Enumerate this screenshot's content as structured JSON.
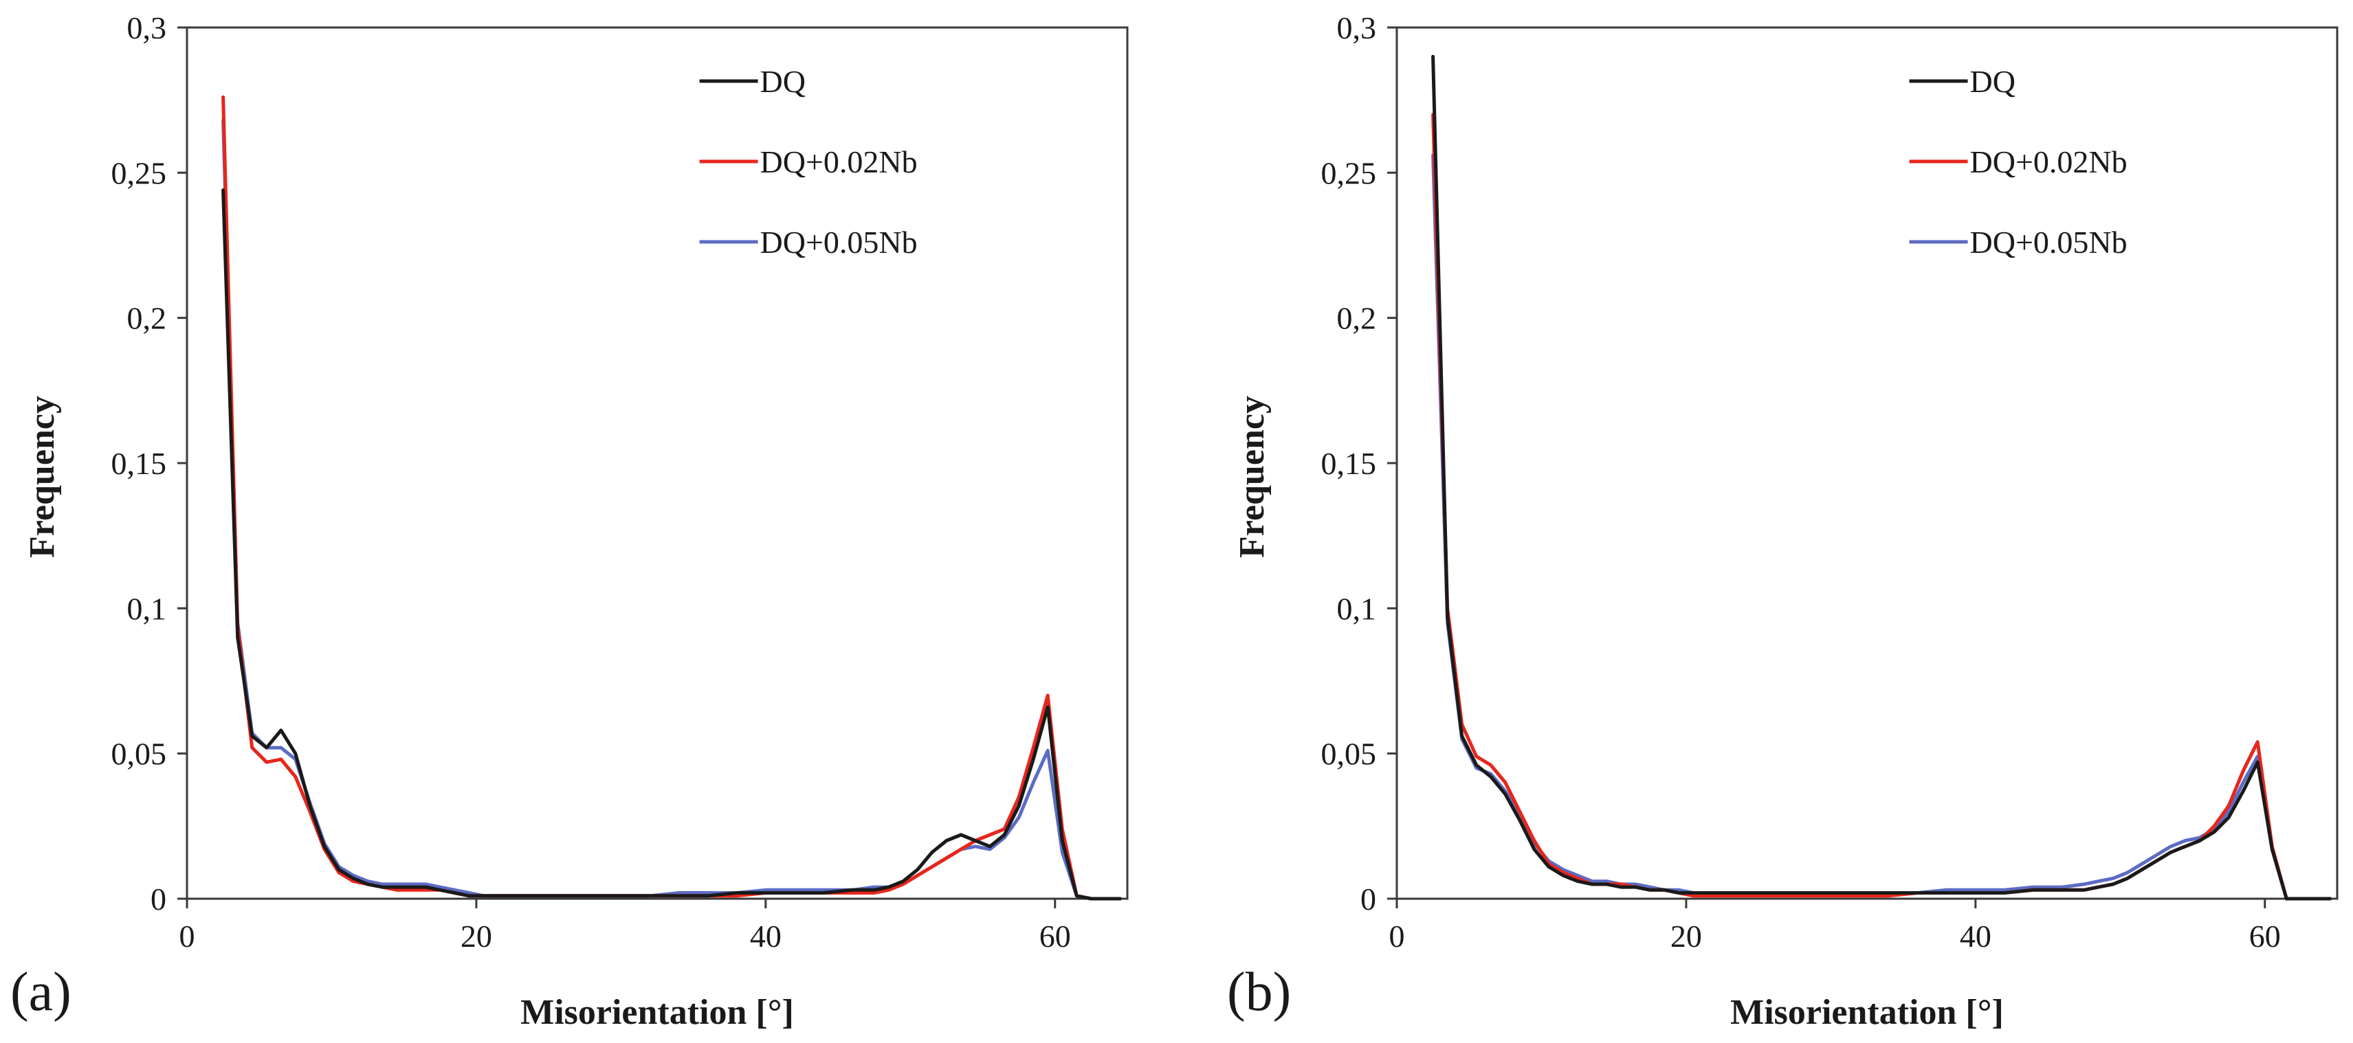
{
  "chart_data": [
    {
      "type": "line",
      "panel_label": "(a)",
      "title": "",
      "xlabel": "Misorientation [°]",
      "ylabel": "Frequency",
      "xlim": [
        0,
        65
      ],
      "ylim": [
        0,
        0.3
      ],
      "xticks": [
        0,
        20,
        40,
        60
      ],
      "xtick_labels": [
        "0",
        "20",
        "40",
        "60"
      ],
      "yticks": [
        0,
        0.05,
        0.1,
        0.15,
        0.2,
        0.25,
        0.3
      ],
      "ytick_labels": [
        "0",
        "0,05",
        "0,1",
        "0,15",
        "0,2",
        "0,25",
        "0,3"
      ],
      "grid": false,
      "legend_position": "top-right",
      "x": [
        2.5,
        3.5,
        4.5,
        5.5,
        6.5,
        7.5,
        8.5,
        9.5,
        10.5,
        11.5,
        12.5,
        13.5,
        14.5,
        15.5,
        16.5,
        17.5,
        18.5,
        19.5,
        20.5,
        22,
        24,
        26,
        28,
        30,
        32,
        34,
        36,
        38,
        40,
        42,
        44,
        46,
        47.5,
        48.5,
        49.5,
        50.5,
        51.5,
        52.5,
        53.5,
        54.5,
        55.5,
        56.5,
        57.5,
        58.5,
        59.5,
        60.5,
        61.5,
        62.5,
        63.5,
        64.5
      ],
      "series": [
        {
          "name": "DQ",
          "color": "#1a1a1a",
          "values": [
            0.244,
            0.09,
            0.056,
            0.052,
            0.058,
            0.05,
            0.032,
            0.018,
            0.01,
            0.007,
            0.005,
            0.004,
            0.004,
            0.004,
            0.004,
            0.003,
            0.002,
            0.001,
            0.001,
            0.001,
            0.001,
            0.001,
            0.001,
            0.001,
            0.001,
            0.001,
            0.001,
            0.002,
            0.002,
            0.002,
            0.002,
            0.003,
            0.003,
            0.004,
            0.006,
            0.01,
            0.016,
            0.02,
            0.022,
            0.02,
            0.018,
            0.022,
            0.032,
            0.048,
            0.066,
            0.02,
            0.001,
            0.0,
            0.0,
            0.0
          ]
        },
        {
          "name": "DQ+0.02Nb",
          "color": "#e8261c",
          "values": [
            0.276,
            0.094,
            0.052,
            0.047,
            0.048,
            0.042,
            0.03,
            0.017,
            0.009,
            0.006,
            0.005,
            0.004,
            0.003,
            0.003,
            0.003,
            0.003,
            0.002,
            0.001,
            0.001,
            0.001,
            0.001,
            0.001,
            0.001,
            0.001,
            0.001,
            0.001,
            0.001,
            0.001,
            0.002,
            0.002,
            0.002,
            0.002,
            0.002,
            0.003,
            0.005,
            0.008,
            0.011,
            0.014,
            0.017,
            0.02,
            0.022,
            0.024,
            0.035,
            0.052,
            0.07,
            0.024,
            0.001,
            0.0,
            0.0,
            0.0
          ]
        },
        {
          "name": "DQ+0.05Nb",
          "color": "#5b6cc4",
          "values": [
            0.268,
            0.095,
            0.057,
            0.052,
            0.052,
            0.048,
            0.033,
            0.019,
            0.011,
            0.008,
            0.006,
            0.005,
            0.005,
            0.005,
            0.005,
            0.004,
            0.003,
            0.002,
            0.001,
            0.001,
            0.001,
            0.001,
            0.001,
            0.001,
            0.001,
            0.002,
            0.002,
            0.002,
            0.003,
            0.003,
            0.003,
            0.003,
            0.004,
            0.004,
            0.005,
            0.008,
            0.011,
            0.014,
            0.017,
            0.018,
            0.017,
            0.021,
            0.028,
            0.04,
            0.051,
            0.016,
            0.001,
            0.0,
            0.0,
            0.0
          ]
        }
      ]
    },
    {
      "type": "line",
      "panel_label": "(b)",
      "title": "",
      "xlabel": "Misorientation [°]",
      "ylabel": "Frequency",
      "xlim": [
        0,
        65
      ],
      "ylim": [
        0,
        0.3
      ],
      "xticks": [
        0,
        20,
        40,
        60
      ],
      "xtick_labels": [
        "0",
        "20",
        "40",
        "60"
      ],
      "yticks": [
        0,
        0.05,
        0.1,
        0.15,
        0.2,
        0.25,
        0.3
      ],
      "ytick_labels": [
        "0",
        "0,05",
        "0,1",
        "0,15",
        "0,2",
        "0,25",
        "0,3"
      ],
      "grid": false,
      "legend_position": "top-right",
      "x": [
        2.5,
        3.5,
        4.5,
        5.5,
        6.5,
        7.5,
        8.5,
        9.5,
        10.5,
        11.5,
        12.5,
        13.5,
        14.5,
        15.5,
        16.5,
        17.5,
        18.5,
        19.5,
        20.5,
        22,
        24,
        26,
        28,
        30,
        32,
        34,
        36,
        38,
        40,
        42,
        44,
        46,
        47.5,
        48.5,
        49.5,
        50.5,
        51.5,
        52.5,
        53.5,
        54.5,
        55.5,
        56.5,
        57.5,
        58.5,
        59.5,
        60.5,
        61.5,
        62.5,
        63.5,
        64.5
      ],
      "series": [
        {
          "name": "DQ",
          "color": "#1a1a1a",
          "values": [
            0.29,
            0.097,
            0.056,
            0.046,
            0.042,
            0.036,
            0.027,
            0.017,
            0.011,
            0.008,
            0.006,
            0.005,
            0.005,
            0.004,
            0.004,
            0.003,
            0.003,
            0.002,
            0.002,
            0.002,
            0.002,
            0.002,
            0.002,
            0.002,
            0.002,
            0.002,
            0.002,
            0.002,
            0.002,
            0.002,
            0.003,
            0.003,
            0.003,
            0.004,
            0.005,
            0.007,
            0.01,
            0.013,
            0.016,
            0.018,
            0.02,
            0.023,
            0.028,
            0.037,
            0.047,
            0.017,
            0.0,
            0.0,
            0.0,
            0.0
          ]
        },
        {
          "name": "DQ+0.02Nb",
          "color": "#e8261c",
          "values": [
            0.27,
            0.1,
            0.06,
            0.049,
            0.046,
            0.04,
            0.03,
            0.02,
            0.012,
            0.009,
            0.007,
            0.005,
            0.005,
            0.005,
            0.004,
            0.003,
            0.003,
            0.002,
            0.001,
            0.001,
            0.001,
            0.001,
            0.001,
            0.001,
            0.001,
            0.001,
            0.002,
            0.002,
            0.002,
            0.002,
            0.003,
            0.003,
            0.003,
            0.004,
            0.005,
            0.007,
            0.01,
            0.013,
            0.016,
            0.018,
            0.02,
            0.025,
            0.032,
            0.044,
            0.054,
            0.018,
            0.0,
            0.0,
            0.0,
            0.0
          ]
        },
        {
          "name": "DQ+0.05Nb",
          "color": "#5b6cc4",
          "values": [
            0.256,
            0.095,
            0.055,
            0.045,
            0.043,
            0.037,
            0.029,
            0.019,
            0.013,
            0.01,
            0.008,
            0.006,
            0.006,
            0.005,
            0.005,
            0.004,
            0.003,
            0.003,
            0.002,
            0.002,
            0.002,
            0.002,
            0.002,
            0.002,
            0.002,
            0.002,
            0.002,
            0.003,
            0.003,
            0.003,
            0.004,
            0.004,
            0.005,
            0.006,
            0.007,
            0.009,
            0.012,
            0.015,
            0.018,
            0.02,
            0.021,
            0.024,
            0.03,
            0.04,
            0.049,
            0.017,
            0.0,
            0.0,
            0.0,
            0.0
          ]
        }
      ]
    }
  ]
}
